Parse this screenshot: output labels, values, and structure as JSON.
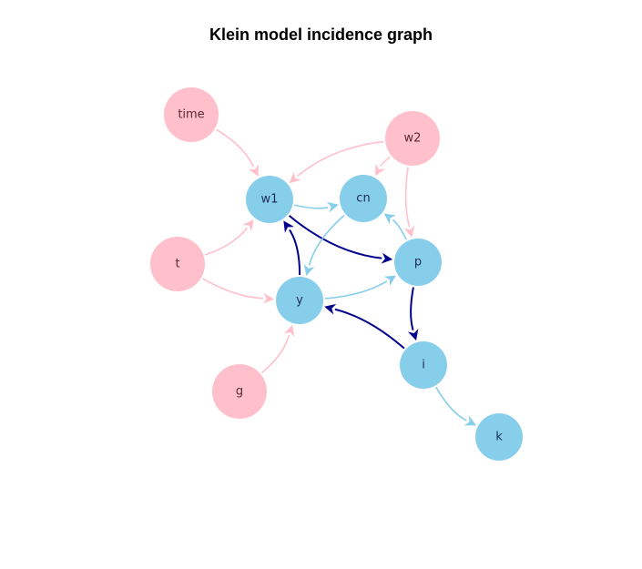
{
  "title": "Klein model incidence graph",
  "colors": {
    "exogenous": "#FFC0CB",
    "endogenous": "#87CEEB",
    "edge_strong": "#00008B",
    "label_endogenous": "#1f2a5c",
    "label_exogenous": "#5a2a30"
  },
  "nodes": [
    {
      "id": "time",
      "type": "exogenous"
    },
    {
      "id": "w2",
      "type": "exogenous"
    },
    {
      "id": "t",
      "type": "exogenous"
    },
    {
      "id": "g",
      "type": "exogenous"
    },
    {
      "id": "w1",
      "type": "endogenous"
    },
    {
      "id": "cn",
      "type": "endogenous"
    },
    {
      "id": "p",
      "type": "endogenous"
    },
    {
      "id": "y",
      "type": "endogenous"
    },
    {
      "id": "i",
      "type": "endogenous"
    },
    {
      "id": "k",
      "type": "endogenous"
    }
  ],
  "edges": [
    {
      "from": "time",
      "to": "w1",
      "kind": "exogenous"
    },
    {
      "from": "w2",
      "to": "w1",
      "kind": "exogenous"
    },
    {
      "from": "w2",
      "to": "cn",
      "kind": "exogenous"
    },
    {
      "from": "w2",
      "to": "p",
      "kind": "exogenous"
    },
    {
      "from": "t",
      "to": "w1",
      "kind": "exogenous"
    },
    {
      "from": "t",
      "to": "y",
      "kind": "exogenous"
    },
    {
      "from": "g",
      "to": "y",
      "kind": "exogenous"
    },
    {
      "from": "w1",
      "to": "cn",
      "kind": "endogenous"
    },
    {
      "from": "w1",
      "to": "p",
      "kind": "strong"
    },
    {
      "from": "cn",
      "to": "y",
      "kind": "endogenous"
    },
    {
      "from": "p",
      "to": "cn",
      "kind": "endogenous"
    },
    {
      "from": "y",
      "to": "p",
      "kind": "endogenous"
    },
    {
      "from": "y",
      "to": "w1",
      "kind": "strong"
    },
    {
      "from": "p",
      "to": "i",
      "kind": "strong"
    },
    {
      "from": "i",
      "to": "y",
      "kind": "strong"
    },
    {
      "from": "i",
      "to": "k",
      "kind": "endogenous"
    }
  ]
}
